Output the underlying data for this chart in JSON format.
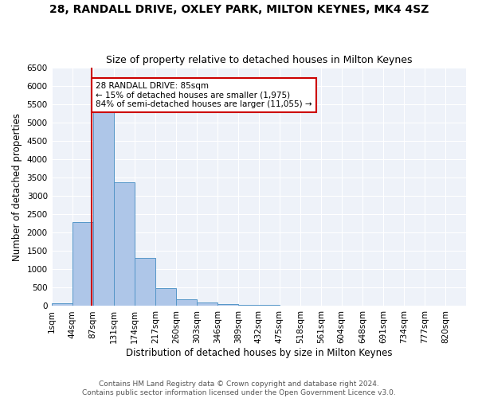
{
  "title": "28, RANDALL DRIVE, OXLEY PARK, MILTON KEYNES, MK4 4SZ",
  "subtitle": "Size of property relative to detached houses in Milton Keynes",
  "xlabel": "Distribution of detached houses by size in Milton Keynes",
  "ylabel": "Number of detached properties",
  "footer_line1": "Contains HM Land Registry data © Crown copyright and database right 2024.",
  "footer_line2": "Contains public sector information licensed under the Open Government Licence v3.0.",
  "bar_edges": [
    1,
    44,
    87,
    131,
    174,
    217,
    260,
    303,
    346,
    389,
    432,
    475,
    518,
    561,
    604,
    648,
    691,
    734,
    777,
    820,
    863
  ],
  "bar_values": [
    70,
    2280,
    5420,
    3380,
    1320,
    480,
    190,
    90,
    55,
    40,
    30,
    20,
    15,
    10,
    8,
    5,
    3,
    2,
    1,
    1
  ],
  "bar_color": "#aec6e8",
  "bar_edge_color": "#5596c8",
  "property_size": 85,
  "red_line_color": "#cc0000",
  "annotation_text": "28 RANDALL DRIVE: 85sqm\n← 15% of detached houses are smaller (1,975)\n84% of semi-detached houses are larger (11,055) →",
  "annotation_box_color": "#ffffff",
  "annotation_box_edge": "#cc0000",
  "ylim": [
    0,
    6500
  ],
  "yticks": [
    0,
    500,
    1000,
    1500,
    2000,
    2500,
    3000,
    3500,
    4000,
    4500,
    5000,
    5500,
    6000,
    6500
  ],
  "bg_color": "#eef2f9",
  "title_fontsize": 10,
  "subtitle_fontsize": 9,
  "axis_label_fontsize": 8.5,
  "tick_fontsize": 7.5,
  "annotation_fontsize": 7.5,
  "footer_fontsize": 6.5
}
